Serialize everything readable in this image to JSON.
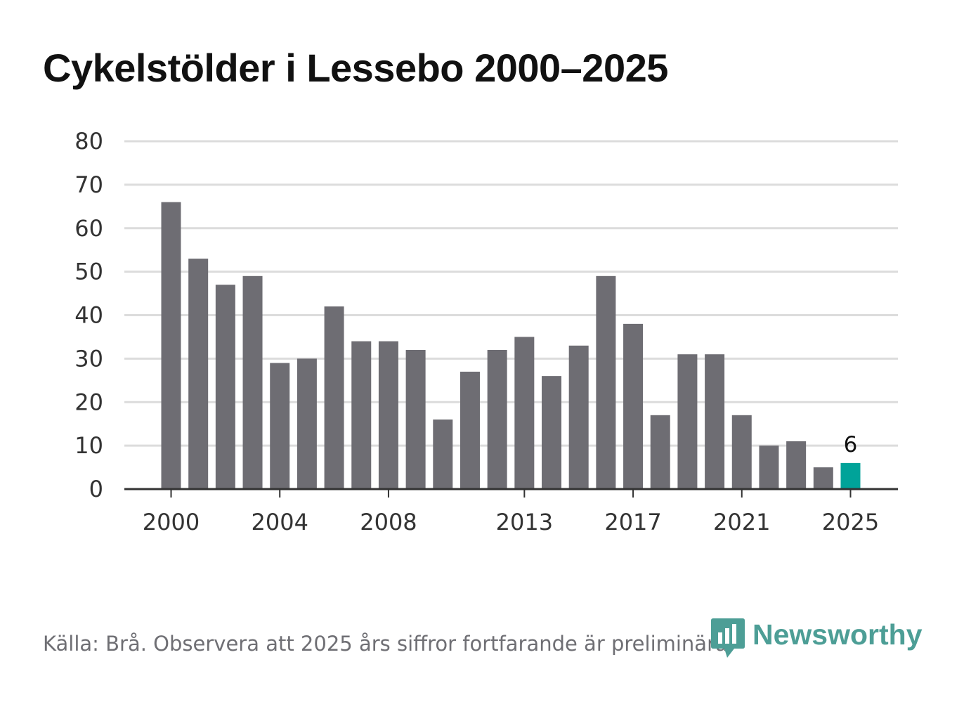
{
  "chart_data": {
    "type": "bar",
    "title": "Cykelstölder i Lessebo 2000–2025",
    "categories": [
      "2000",
      "2001",
      "2002",
      "2003",
      "2004",
      "2005",
      "2006",
      "2007",
      "2008",
      "2009",
      "2010",
      "2011",
      "2012",
      "2013",
      "2014",
      "2015",
      "2016",
      "2017",
      "2018",
      "2019",
      "2020",
      "2021",
      "2022",
      "2023",
      "2024",
      "2025"
    ],
    "values": [
      66,
      53,
      47,
      49,
      29,
      30,
      42,
      34,
      34,
      32,
      16,
      27,
      32,
      35,
      26,
      33,
      49,
      38,
      17,
      31,
      31,
      17,
      10,
      11,
      5,
      6
    ],
    "x_tick_labels": [
      "2000",
      "2004",
      "2008",
      "2013",
      "2017",
      "2021",
      "2025"
    ],
    "y_ticks": [
      0,
      10,
      20,
      30,
      40,
      50,
      60,
      70,
      80
    ],
    "ylim": [
      0,
      80
    ],
    "xlabel": "",
    "ylabel": "",
    "highlight": {
      "category": "2025",
      "label": "6"
    },
    "colors": {
      "bar": "#6e6d73",
      "highlight": "#00a399",
      "grid": "#dcdcdc",
      "axis": "#333333",
      "tick_text": "#333333"
    }
  },
  "footer": {
    "source": "Källa: Brå. Observera att 2025 års siffror fortfarande är preliminära.",
    "brand": "Newsworthy"
  },
  "logo": {
    "icon": "newsworthy-logo-icon",
    "color": "#4d9e96"
  }
}
